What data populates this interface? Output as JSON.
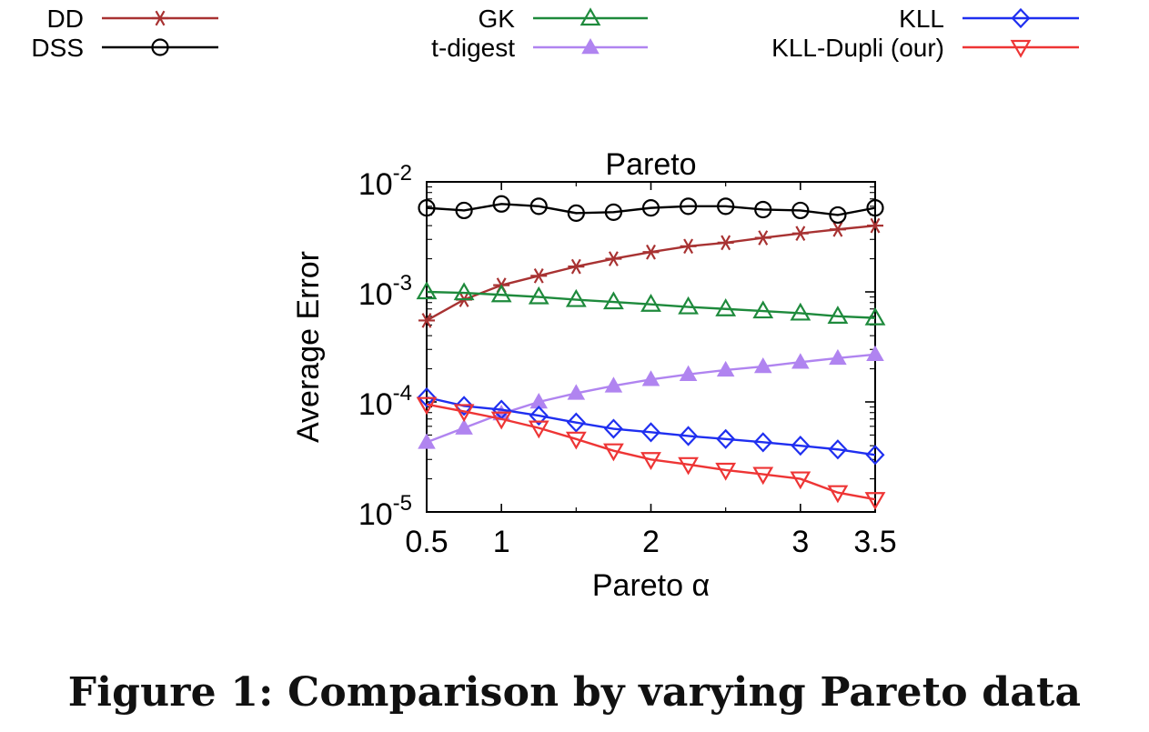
{
  "caption": "Figure 1: Comparison by varying Pareto data",
  "chart_data": {
    "type": "line",
    "title": "Pareto",
    "xlabel": "Pareto α",
    "ylabel": "Average Error",
    "xlim": [
      0.5,
      3.5
    ],
    "ylim": [
      1e-05,
      0.01
    ],
    "yscale": "log",
    "grid": false,
    "legend_position": "top",
    "xticks": [
      {
        "value": 0.5,
        "label": "0.5"
      },
      {
        "value": 1,
        "label": "1"
      },
      {
        "value": 2,
        "label": "2"
      },
      {
        "value": 3,
        "label": "3"
      },
      {
        "value": 3.5,
        "label": "3.5"
      }
    ],
    "yticks": [
      {
        "value": 0.01,
        "base": "10",
        "exp": "-2"
      },
      {
        "value": 0.001,
        "base": "10",
        "exp": "-3"
      },
      {
        "value": 0.0001,
        "base": "10",
        "exp": "-4"
      },
      {
        "value": 1e-05,
        "base": "10",
        "exp": "-5"
      }
    ],
    "x": [
      0.5,
      0.75,
      1.0,
      1.25,
      1.5,
      1.75,
      2.0,
      2.25,
      2.5,
      2.75,
      3.0,
      3.25,
      3.5
    ],
    "series": [
      {
        "name": "DD",
        "color": "#a83232",
        "marker": "asterisk",
        "values": [
          0.00055,
          0.00085,
          0.00115,
          0.0014,
          0.0017,
          0.002,
          0.0023,
          0.0026,
          0.0028,
          0.0031,
          0.0034,
          0.0037,
          0.004
        ]
      },
      {
        "name": "DSS",
        "color": "#000000",
        "marker": "circle",
        "values": [
          0.0058,
          0.0055,
          0.0063,
          0.006,
          0.0052,
          0.0053,
          0.0058,
          0.006,
          0.006,
          0.0056,
          0.0055,
          0.005,
          0.0058
        ]
      },
      {
        "name": "GK",
        "color": "#1e8a3c",
        "marker": "triangle-up",
        "values": [
          0.001,
          0.00098,
          0.00094,
          0.0009,
          0.00085,
          0.00081,
          0.00077,
          0.00073,
          0.0007,
          0.00067,
          0.00064,
          0.0006,
          0.00058
        ]
      },
      {
        "name": "t-digest",
        "color": "#b084f0",
        "marker": "triangle-filled",
        "values": [
          4.3e-05,
          5.8e-05,
          7.8e-05,
          0.0001,
          0.00012,
          0.00014,
          0.00016,
          0.000178,
          0.000195,
          0.00021,
          0.00023,
          0.00025,
          0.00027
        ]
      },
      {
        "name": "KLL",
        "color": "#1f2ff0",
        "marker": "diamond",
        "values": [
          0.00011,
          9.2e-05,
          8.5e-05,
          7.5e-05,
          6.5e-05,
          5.7e-05,
          5.3e-05,
          4.9e-05,
          4.6e-05,
          4.3e-05,
          4e-05,
          3.7e-05,
          3.3e-05
        ]
      },
      {
        "name": "KLL-Dupli (our)",
        "color": "#ee3535",
        "marker": "triangle-down",
        "values": [
          9.5e-05,
          8.2e-05,
          7e-05,
          5.8e-05,
          4.6e-05,
          3.6e-05,
          3e-05,
          2.7e-05,
          2.4e-05,
          2.2e-05,
          2e-05,
          1.5e-05,
          1.3e-05
        ]
      }
    ]
  }
}
